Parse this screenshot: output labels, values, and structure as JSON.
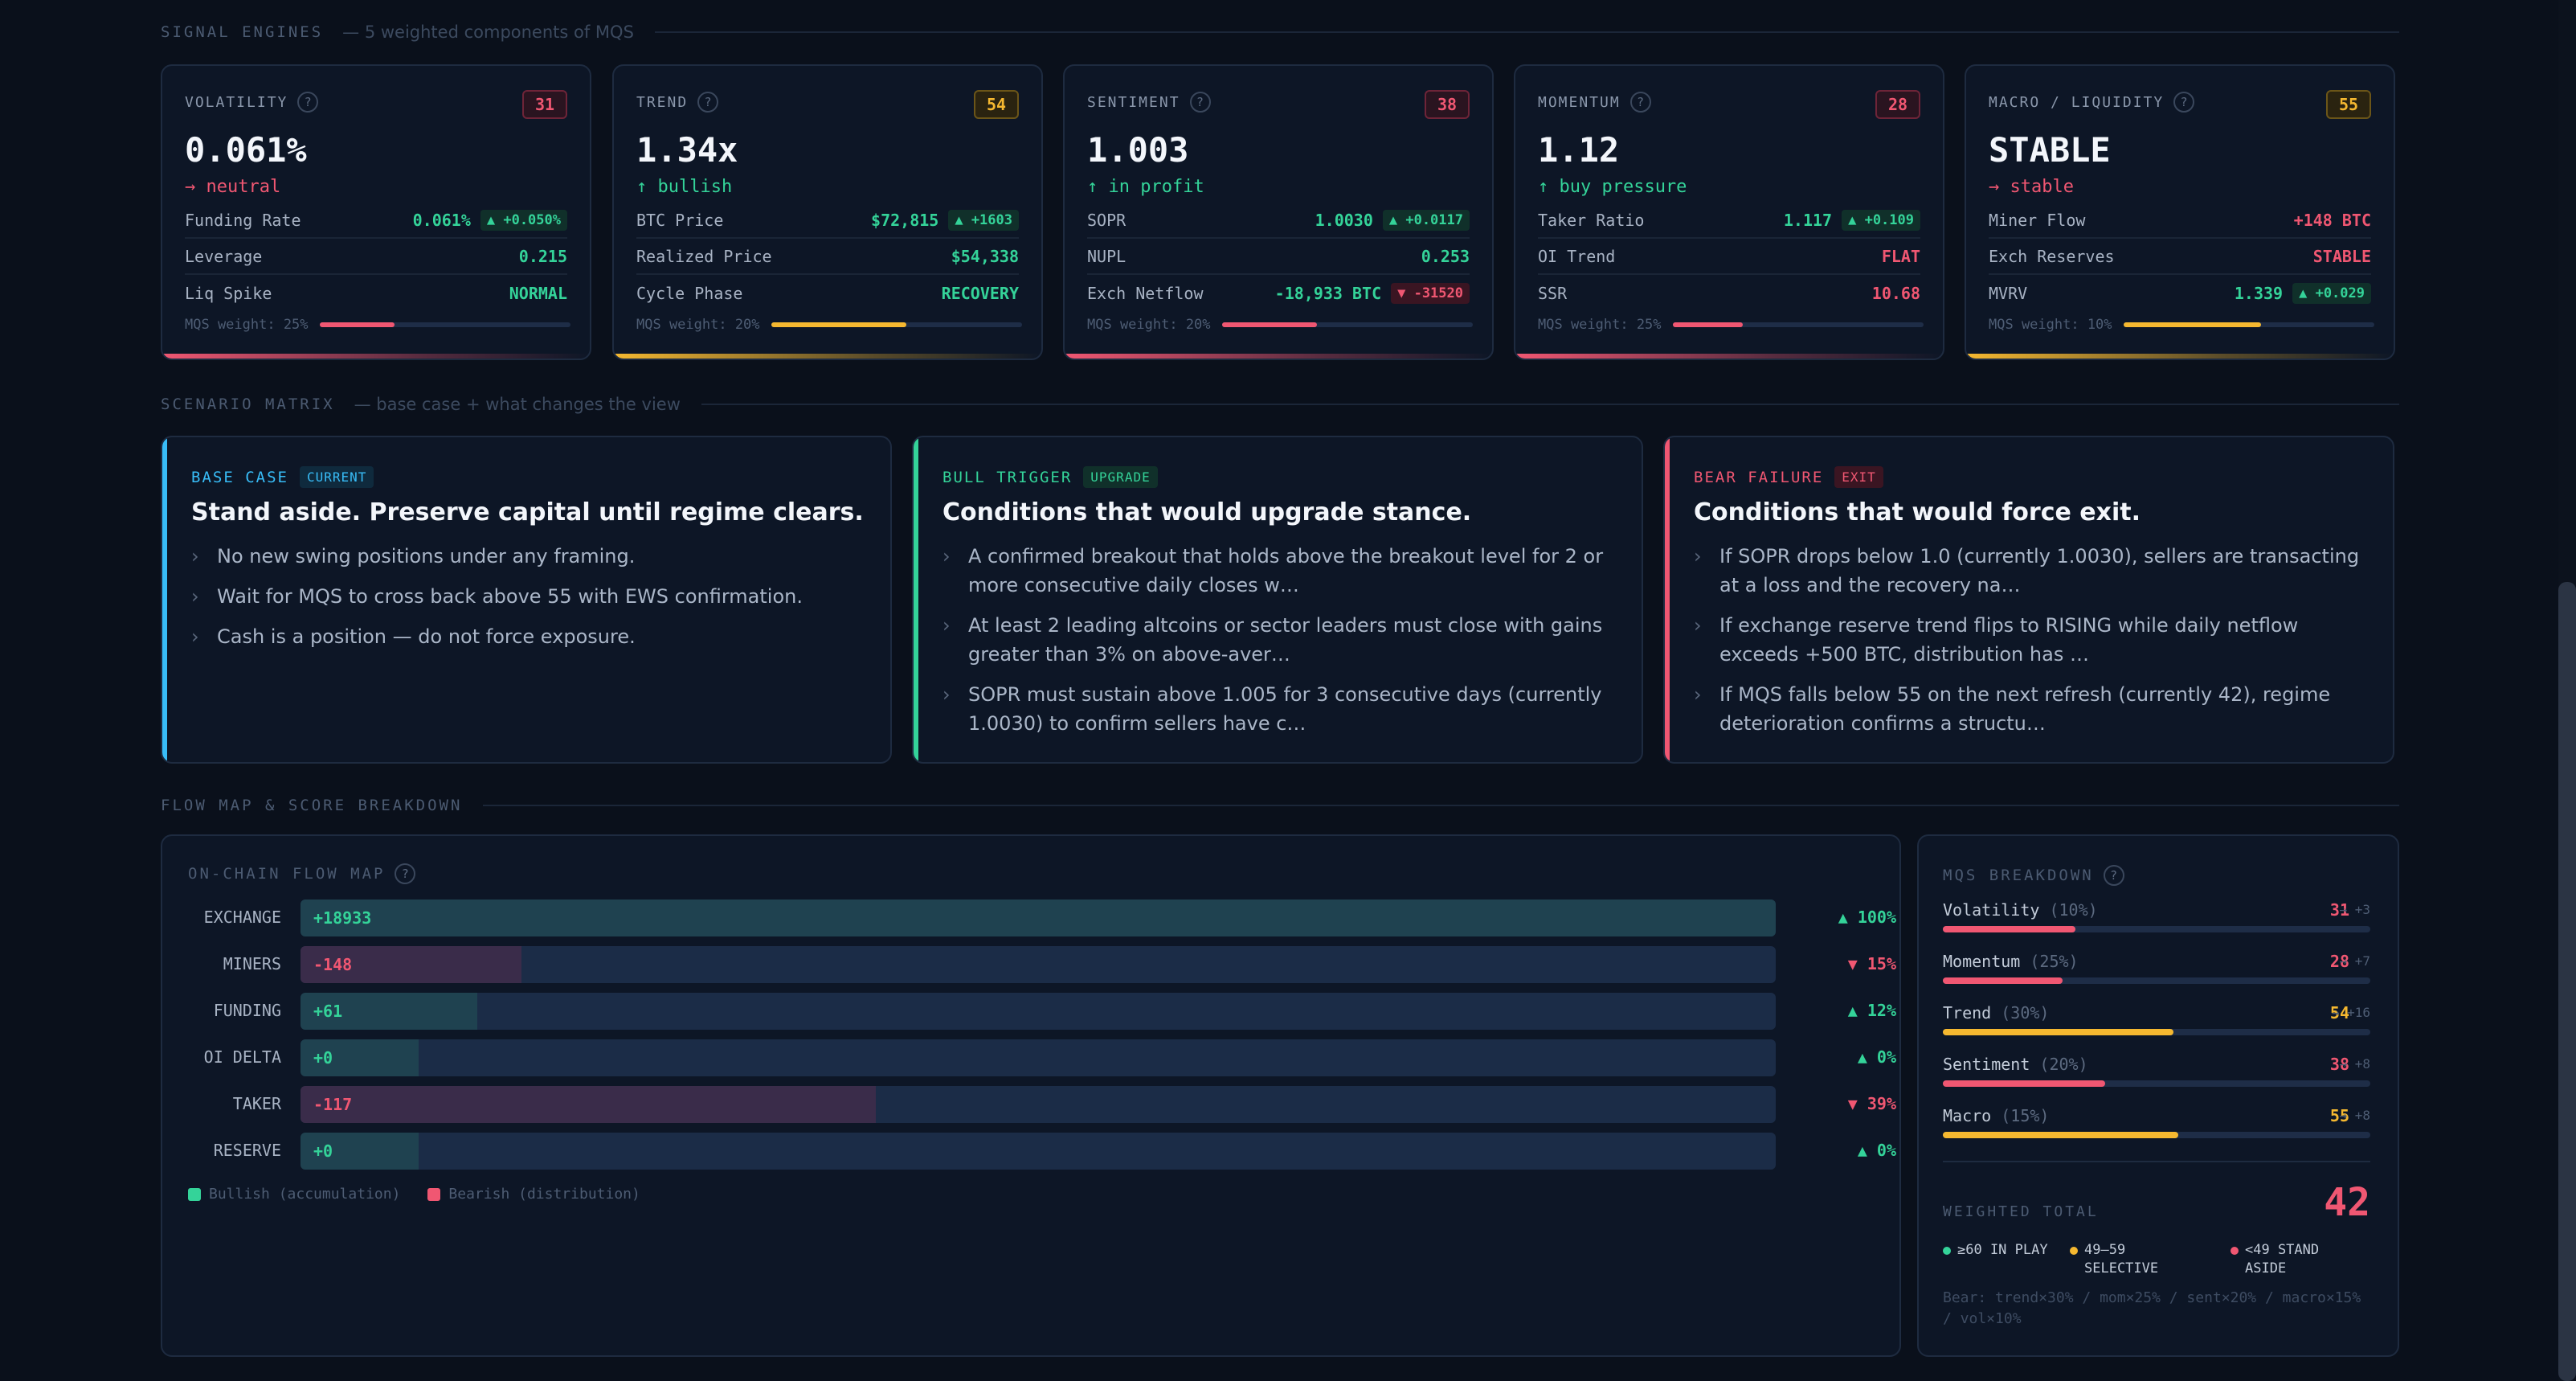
{
  "signal_engines": {
    "title": "SIGNAL ENGINES",
    "subtitle": "— 5 weighted components of MQS",
    "cards": [
      {
        "label": "VOLATILITY",
        "score": "31",
        "value": "0.061%",
        "trend": "→ neutral",
        "rows": [
          {
            "k": "Funding Rate",
            "v": "0.061%",
            "d": "▲ +0.050%"
          },
          {
            "k": "Leverage",
            "v": "0.215"
          },
          {
            "k": "Liq Spike",
            "v": "NORMAL"
          }
        ],
        "weight": "MQS weight: 25%",
        "weight_level": 0.3
      },
      {
        "label": "TREND",
        "score": "54",
        "value": "1.34x",
        "trend": "↑ bullish",
        "rows": [
          {
            "k": "BTC Price",
            "v": "$72,815",
            "d": "▲ +1603"
          },
          {
            "k": "Realized Price",
            "v": "$54,338"
          },
          {
            "k": "Cycle Phase",
            "v": "RECOVERY"
          }
        ],
        "weight": "MQS weight: 20%",
        "weight_level": 0.54
      },
      {
        "label": "SENTIMENT",
        "score": "38",
        "value": "1.003",
        "trend": "↑ in profit",
        "rows": [
          {
            "k": "SOPR",
            "v": "1.0030",
            "d": "▲ +0.0117"
          },
          {
            "k": "NUPL",
            "v": "0.253"
          },
          {
            "k": "Exch Netflow",
            "v": "-18,933 BTC",
            "d": "▼ -31520"
          }
        ],
        "weight": "MQS weight: 20%",
        "weight_level": 0.38
      },
      {
        "label": "MOMENTUM",
        "score": "28",
        "value": "1.12",
        "trend": "↑ buy pressure",
        "rows": [
          {
            "k": "Taker Ratio",
            "v": "1.117",
            "d": "▲ +0.109"
          },
          {
            "k": "OI Trend",
            "v": "FLAT"
          },
          {
            "k": "SSR",
            "v": "10.68"
          }
        ],
        "weight": "MQS weight: 25%",
        "weight_level": 0.28
      },
      {
        "label": "MACRO / LIQUIDITY",
        "score": "55",
        "value": "STABLE",
        "trend": "→ stable",
        "rows": [
          {
            "k": "Miner Flow",
            "v": "+148 BTC"
          },
          {
            "k": "Exch Reserves",
            "v": "STABLE"
          },
          {
            "k": "MVRV",
            "v": "1.339",
            "d": "▲ +0.029"
          }
        ],
        "weight": "MQS weight: 10%",
        "weight_level": 0.55
      }
    ]
  },
  "scenario_matrix": {
    "title": "SCENARIO MATRIX",
    "subtitle": "— base case + what changes the view",
    "cards": [
      {
        "label": "BASE CASE",
        "tag": "CURRENT",
        "heading": "Stand aside. Preserve capital until regime clears.",
        "items": [
          "No new swing positions under any framing.",
          "Wait for MQS to cross back above 55 with EWS confirmation.",
          "Cash is a position — do not force exposure."
        ]
      },
      {
        "label": "BULL TRIGGER",
        "tag": "UPGRADE",
        "heading": "Conditions that would upgrade stance.",
        "items": [
          "A confirmed breakout that holds above the breakout level for 2 or more consecutive daily closes w…",
          "At least 2 leading altcoins or sector leaders must close with gains greater than 3% on above-aver…",
          "SOPR must sustain above 1.005 for 3 consecutive days (currently 1.0030) to confirm sellers have c…"
        ]
      },
      {
        "label": "BEAR FAILURE",
        "tag": "EXIT",
        "heading": "Conditions that would force exit.",
        "items": [
          "If SOPR drops below 1.0 (currently 1.0030), sellers are transacting at a loss and the recovery na…",
          "If exchange reserve trend flips to RISING while daily netflow exceeds +500 BTC, distribution has …",
          "If MQS falls below 55 on the next refresh (currently 42), regime deterioration confirms a structu…"
        ]
      }
    ]
  },
  "flow_section": {
    "title": "FLOW MAP & SCORE BREAKDOWN"
  },
  "flow_map": {
    "title": "ON-CHAIN FLOW MAP",
    "rows": [
      {
        "label": "EXCHANGE",
        "value": "+18933",
        "pct": "▲ 100%",
        "level": 1.0,
        "dir": "up"
      },
      {
        "label": "MINERS",
        "value": "-148",
        "pct": "▼ 15%",
        "level": 0.15,
        "dir": "down"
      },
      {
        "label": "FUNDING",
        "value": "+61",
        "pct": "▲ 12%",
        "level": 0.12,
        "dir": "up"
      },
      {
        "label": "OI DELTA",
        "value": "+0",
        "pct": "▲ 0%",
        "level": 0.0,
        "dir": "up"
      },
      {
        "label": "TAKER",
        "value": "-117",
        "pct": "▼ 39%",
        "level": 0.39,
        "dir": "down"
      },
      {
        "label": "RESERVE",
        "value": "+0",
        "pct": "▲ 0%",
        "level": 0.0,
        "dir": "up"
      }
    ],
    "legend": {
      "bull": "Bullish (accumulation)",
      "bear": "Bearish (distribution)"
    }
  },
  "mqs_breakdown": {
    "title": "MQS BREAKDOWN",
    "rows": [
      {
        "name": "Volatility",
        "weight": "(10%)",
        "score": "31",
        "delta": "→ +3",
        "level": 0.31,
        "color": "red"
      },
      {
        "name": "Momentum",
        "weight": "(25%)",
        "score": "28",
        "delta": "→ +7",
        "level": 0.28,
        "color": "red"
      },
      {
        "name": "Trend",
        "weight": "(30%)",
        "score": "54",
        "delta": "→ +16",
        "level": 0.54,
        "color": "yel"
      },
      {
        "name": "Sentiment",
        "weight": "(20%)",
        "score": "38",
        "delta": "→ +8",
        "level": 0.38,
        "color": "red"
      },
      {
        "name": "Macro",
        "weight": "(15%)",
        "score": "55",
        "delta": "→ +8",
        "level": 0.55,
        "color": "yel"
      }
    ],
    "total_label": "WEIGHTED TOTAL",
    "total": "42",
    "legend": [
      {
        "t": "≥60 IN PLAY",
        "c": "#34d399"
      },
      {
        "t": "49–59 SELECTIVE",
        "c": "#f5b830"
      },
      {
        "t": "<49 STAND ASIDE",
        "c": "#f05772"
      }
    ],
    "footnote": "Bear: trend×30% / mom×25% / sent×20% / macro×15% / vol×10%"
  },
  "colors": {
    "green": "#34d399",
    "red": "#f05772",
    "yellow": "#f5b830",
    "cyan": "#38bdf8",
    "bg": "#0a101b",
    "card": "#0d1626"
  }
}
